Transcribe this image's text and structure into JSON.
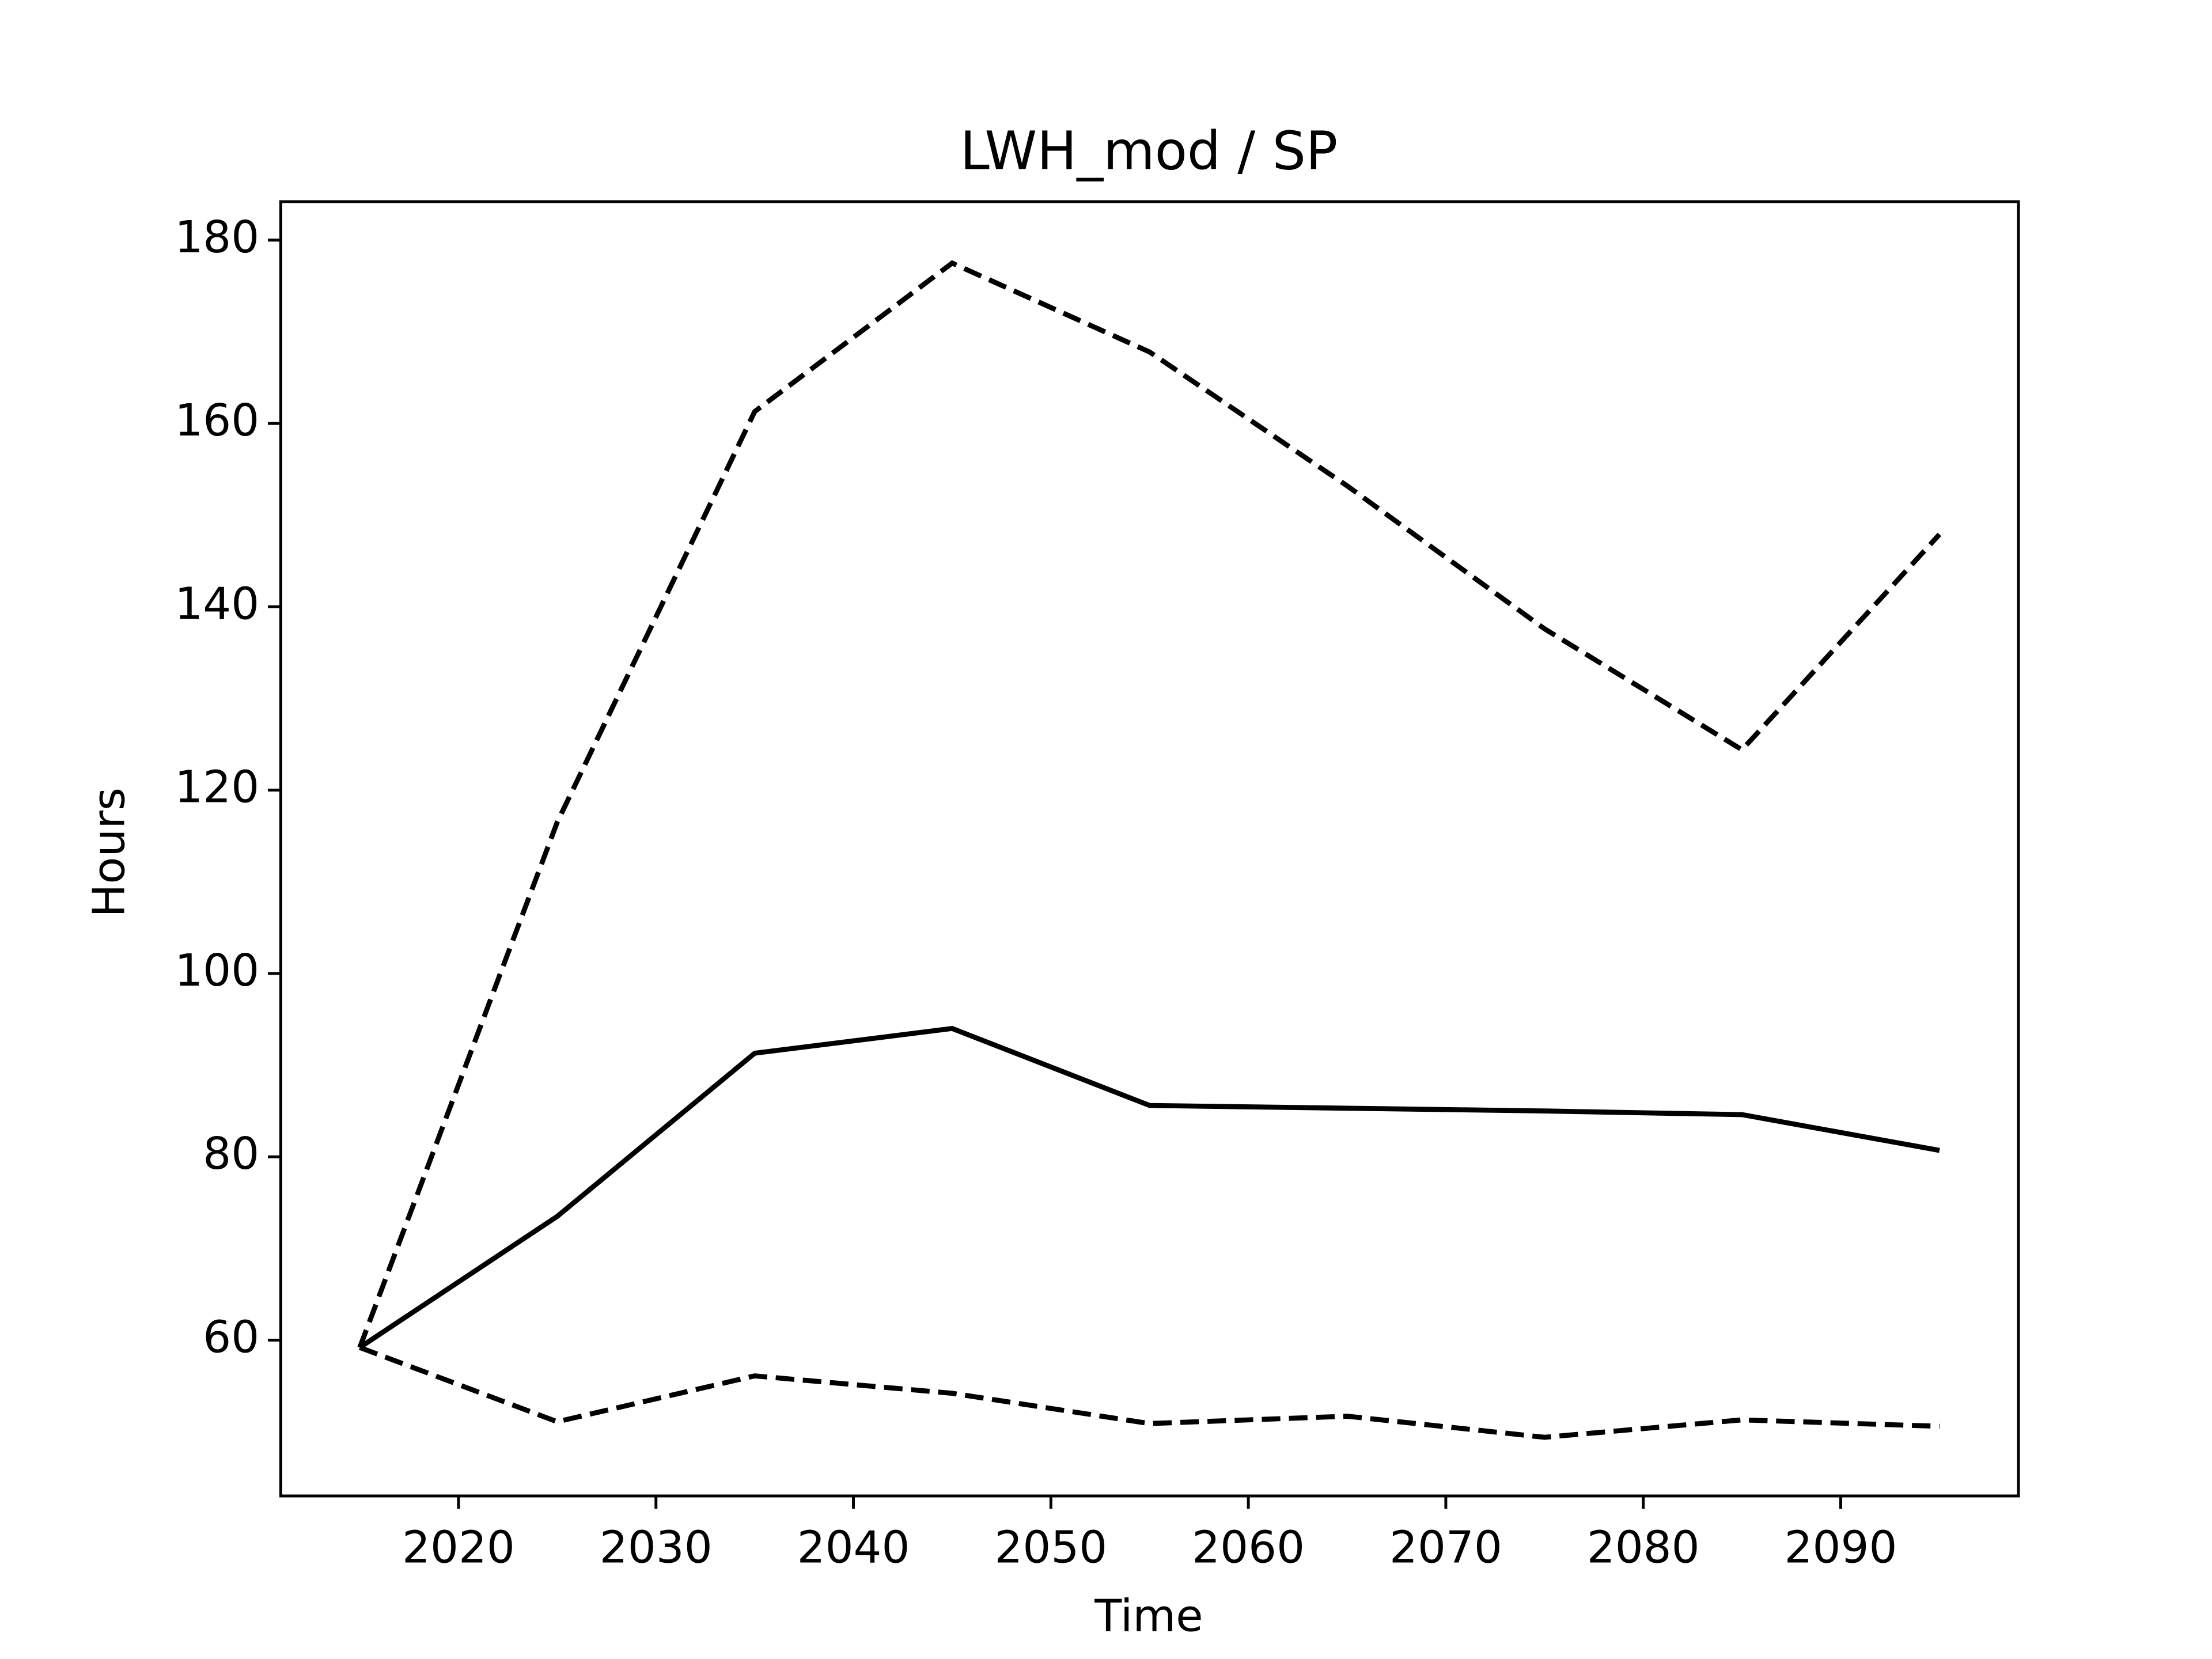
{
  "chart_data": {
    "type": "line",
    "title": "LWH_mod / SP",
    "xlabel": "Time",
    "ylabel": "Hours",
    "x": [
      2015,
      2025,
      2035,
      2045,
      2055,
      2065,
      2075,
      2085,
      2095
    ],
    "series": [
      {
        "color": "#000000",
        "linestyle": "solid",
        "values": [
          59.2,
          73.5,
          91.3,
          94.0,
          85.6,
          85.3,
          85.0,
          84.6,
          80.7
        ]
      },
      {
        "color": "#000000",
        "linestyle": "dashed",
        "values": [
          59.2,
          116.5,
          161.3,
          177.5,
          167.8,
          153.2,
          137.6,
          124.4,
          147.9
        ]
      },
      {
        "color": "#000000",
        "linestyle": "dashed",
        "values": [
          59.2,
          51.1,
          56.1,
          54.2,
          50.9,
          51.7,
          49.4,
          51.3,
          50.6
        ]
      }
    ],
    "xlim": [
      2011,
      2099
    ],
    "xticks": [
      2020,
      2030,
      2040,
      2050,
      2060,
      2070,
      2080,
      2090
    ],
    "ylim": [
      43,
      184.2
    ],
    "yticks": [
      60,
      80,
      100,
      120,
      140,
      160,
      180
    ],
    "grid": false
  }
}
